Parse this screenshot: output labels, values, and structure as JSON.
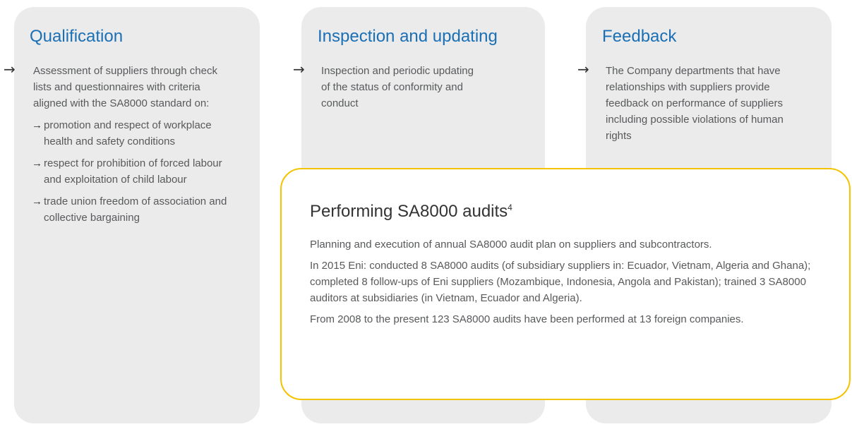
{
  "columns": [
    {
      "title": "Qualification",
      "text": "Assessment of suppliers through check lists and questionnaires with criteria aligned with the SA8000 standard on:",
      "subitems": [
        "promotion and respect of workplace health and safety conditions",
        "respect for prohibition of forced labour and exploitation of child labour",
        "trade union freedom of association and collective bargaining"
      ]
    },
    {
      "title": "Inspection and updating",
      "text": "Inspection and periodic updating of the status of conformity and conduct",
      "subitems": []
    },
    {
      "title": "Feedback",
      "text": "The Company departments that have relationships with suppliers provide feedback on performance of suppliers including possible violations of human rights",
      "subitems": []
    }
  ],
  "audit": {
    "title": "Performing SA8000 audits",
    "footnote": "4",
    "paragraphs": [
      "Planning and execution of annual SA8000 audit plan on suppliers and subcontractors.",
      "In 2015 Eni: conducted 8 SA8000 audits (of subsidiary suppliers in: Ecuador, Vietnam, Algeria and Ghana); completed 8 follow-ups of Eni suppliers (Mozambique, Indonesia, Angola and Pakistan); trained 3 SA8000 auditors at subsidiaries (in Vietnam, Ecuador and Algeria).",
      "From 2008 to the present 123 SA8000 audits have been performed at 13 foreign companies."
    ]
  }
}
